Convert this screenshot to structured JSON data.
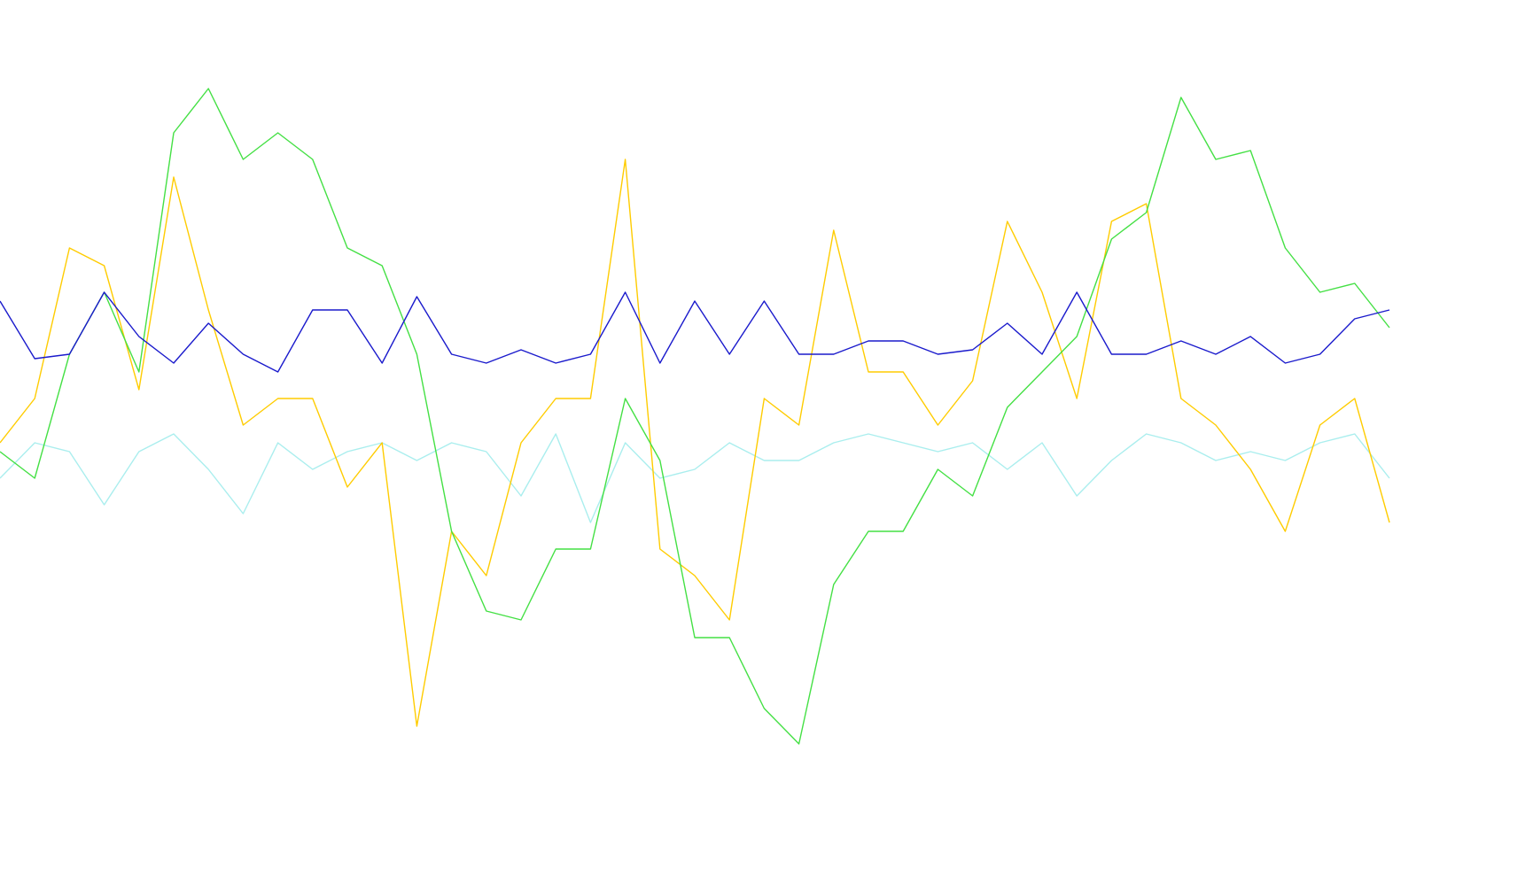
{
  "chart_data": {
    "type": "line",
    "ylim": [
      0,
      1005
    ],
    "series": [
      {
        "color": "#aaeeee",
        "values": [
          465,
          505,
          495,
          435,
          495,
          515,
          475,
          425,
          505,
          475,
          495,
          505,
          485,
          505,
          495,
          445,
          515,
          415,
          505,
          465,
          475,
          505,
          485,
          485,
          505,
          515,
          505,
          495,
          505,
          475,
          505,
          445,
          485,
          515,
          505,
          485,
          495,
          485,
          505,
          515,
          465
        ]
      },
      {
        "color": "#ffcc00",
        "values": [
          505,
          555,
          725,
          705,
          565,
          805,
          655,
          525,
          555,
          555,
          455,
          505,
          185,
          405,
          355,
          505,
          555,
          555,
          825,
          385,
          355,
          305,
          555,
          525,
          745,
          585,
          585,
          525,
          575,
          755,
          675,
          555,
          755,
          775,
          555,
          525,
          475,
          405,
          525,
          555,
          415
        ]
      },
      {
        "color": "#44e044",
        "values": [
          495,
          465,
          605,
          675,
          585,
          855,
          905,
          825,
          855,
          825,
          725,
          705,
          605,
          405,
          315,
          305,
          385,
          385,
          555,
          485,
          285,
          285,
          205,
          165,
          345,
          405,
          405,
          475,
          445,
          545,
          585,
          625,
          735,
          765,
          895,
          825,
          835,
          725,
          675,
          685,
          635
        ]
      },
      {
        "color": "#1a1acc",
        "values": [
          665,
          600,
          605,
          675,
          625,
          595,
          640,
          605,
          585,
          655,
          655,
          595,
          670,
          605,
          595,
          610,
          595,
          605,
          675,
          595,
          665,
          605,
          665,
          605,
          605,
          620,
          620,
          605,
          610,
          640,
          605,
          675,
          605,
          605,
          620,
          605,
          625,
          595,
          605,
          645,
          655
        ]
      }
    ]
  }
}
